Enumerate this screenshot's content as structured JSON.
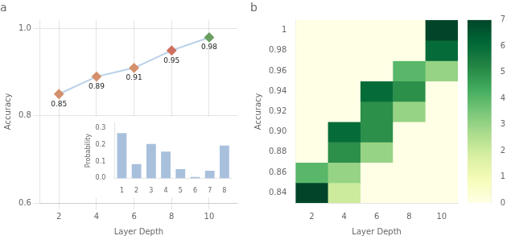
{
  "chart_data": [
    {
      "type": "line",
      "title": "a",
      "x": [
        2,
        4,
        6,
        8,
        10
      ],
      "values": [
        0.85,
        0.89,
        0.91,
        0.95,
        0.98
      ],
      "color": "#b8d0e8",
      "colors": [
        "#d4906c",
        "#d4906c",
        "#d4906c",
        "#d07060",
        "#6a9e60"
      ],
      "marker": "diamond",
      "xlabel": "Layer Depth",
      "ylabel": "Accuracy",
      "xlim": [
        1.0,
        11.5
      ],
      "ylim": [
        0.6,
        1.02
      ],
      "xticks": [
        2,
        4,
        6,
        8,
        10
      ],
      "yticks": [
        0.6,
        0.8,
        {
          "value": 1.0,
          "label": "1.0"
        }
      ],
      "grid": true,
      "data_labels": true
    },
    {
      "type": "bar",
      "categories": [
        "1",
        "2",
        "3",
        "4",
        "5",
        "6",
        "7",
        "8"
      ],
      "values": [
        0.27,
        0.085,
        0.205,
        0.16,
        0.055,
        0.008,
        0.045,
        0.195
      ],
      "color": "#a8c0dc",
      "ylabel": "Probability",
      "ylim": [
        0,
        0.33
      ],
      "yticks": [
        {
          "value": 0,
          "label": "0.0"
        },
        0.1,
        0.2,
        0.3
      ],
      "grid": false
    },
    {
      "type": "heatmap",
      "title": "b",
      "x": [
        2,
        4,
        6,
        8,
        10
      ],
      "y": [
        0.84,
        0.86,
        0.88,
        0.9,
        0.92,
        0.94,
        0.96,
        0.98,
        1
      ],
      "values": [
        [
          7,
          2,
          0,
          0,
          0
        ],
        [
          4,
          3,
          0,
          0,
          0
        ],
        [
          0,
          5,
          3,
          0,
          0
        ],
        [
          0,
          6,
          5,
          0,
          0
        ],
        [
          0,
          0,
          5,
          3,
          0
        ],
        [
          0,
          0,
          6,
          5,
          0
        ],
        [
          0,
          0,
          0,
          4,
          3
        ],
        [
          0,
          0,
          0,
          0,
          6
        ],
        [
          0,
          0,
          0,
          0,
          7
        ]
      ],
      "xlabel": "Layer Depth",
      "ylabel": "Accuracy",
      "xlim": [
        1,
        11
      ],
      "ylim": [
        0.83,
        1.01
      ],
      "xticks": [
        2,
        4,
        6,
        8,
        10
      ],
      "yticks": [
        0.84,
        0.86,
        0.88,
        {
          "value": 0.9,
          "label": "0.90"
        },
        0.92,
        0.94,
        0.96,
        0.98,
        1
      ],
      "colorbar_lim": [
        0,
        7
      ],
      "colorbar_ticks": [
        0,
        1,
        2,
        3,
        4,
        5,
        6,
        7
      ],
      "grid": false
    }
  ]
}
